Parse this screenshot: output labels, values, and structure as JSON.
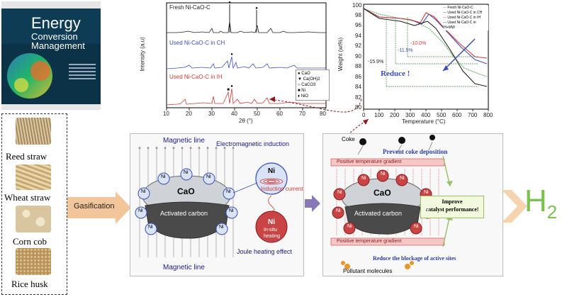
{
  "journal": {
    "title_line1": "Energy",
    "title_line2": "Conversion",
    "title_line3": "Management"
  },
  "feedstocks": [
    {
      "label": "Reed  straw",
      "color": "#a88a5c"
    },
    {
      "label": "Wheat straw",
      "color": "#c9a870"
    },
    {
      "label": "Corn cob",
      "color": "#d9c6a0"
    },
    {
      "label": "Rice husk",
      "color": "#b8925a"
    }
  ],
  "arrow_labels": {
    "gasification": "Gasification",
    "product": "H2",
    "product_base": "H",
    "product_sub": "2"
  },
  "xrd": {
    "xlabel": "2θ (°)",
    "ylabel": "Intensity (a.u)",
    "xticks": [
      "10",
      "20",
      "30",
      "40",
      "50",
      "60",
      "70",
      "80"
    ],
    "series": [
      {
        "name": "Fresh Ni-CaO-C",
        "color": "#222222"
      },
      {
        "name": "Used Ni-CaO-C in CH",
        "color": "#3a4fb8"
      },
      {
        "name": "Used Ni-CaO-C in IH",
        "color": "#d23a3a"
      }
    ],
    "legend": [
      "CaO",
      "Ca(OH)2",
      "CaCO3",
      "Ni",
      "NiO"
    ]
  },
  "tga": {
    "xlabel": "Temperature (°C)",
    "ylabel": "Weight (wt%)",
    "xticks": [
      "0",
      "100",
      "200",
      "300",
      "400",
      "500",
      "600",
      "700",
      "800"
    ],
    "yticks": [
      "100",
      "98",
      "96",
      "94",
      "92",
      "90",
      "88",
      "86",
      "84",
      "82",
      "80"
    ],
    "legend": [
      "Fresh Ni-CaO-C",
      "Used Ni-CaO-C in CH",
      "Used Ni-CaO-C in IH",
      "Used Ni-CaO-C in IH+MW"
    ],
    "annotations": [
      "-10.0%",
      "-11.5%",
      "-15.9%"
    ],
    "reduce_label": "Reduce !"
  },
  "mechanism_left": {
    "magnetic_line_top": "Magnetic line",
    "magnetic_line_bottom": "Magnetic line",
    "electromagnetic_induction": "Electromagnetic induction",
    "cao": "CaO",
    "activated_carbon": "Activated carbon",
    "ni": "Ni",
    "induction_current": "Induction current",
    "in_situ_heating_1": "In-situ",
    "in_situ_heating_2": "heating",
    "joule_heating": "Joule  heating effect"
  },
  "mechanism_right": {
    "coke": "Coke",
    "prevent_coke": "Prevent coke deposition",
    "gradient_top": "Positive temperature gradient",
    "gradient_bottom": "Positive temperature gradient",
    "cao": "CaO",
    "activated_carbon": "Activated carbon",
    "ni": "Ni",
    "improve_1": "Improve",
    "improve_2": "catalyst performance!",
    "reduce_blockage": "Reduce the blockage of active sites",
    "pollutant": "Pollutant molecules"
  },
  "colors": {
    "orange_arrow": "#f2c69a",
    "purple_arrow": "#8878b8",
    "green_h2": "#7cc24f",
    "ni_blue": "#d9e3f5",
    "ni_red": "#c94545",
    "cao_fill": "#cfd3d8",
    "carbon_fill": "#4a4a4a"
  }
}
